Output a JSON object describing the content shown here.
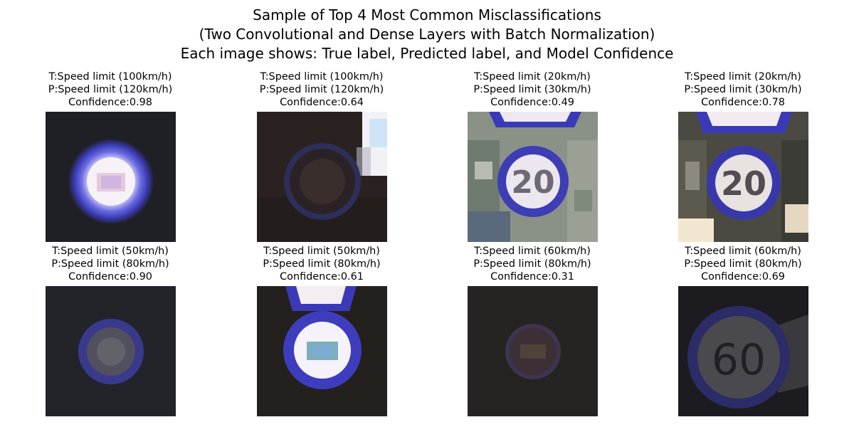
{
  "figure": {
    "title_lines": [
      "Sample of Top 4 Most Common Misclassifications",
      "(Two Convolutional and Dense Layers with Batch Normalization)",
      "Each image shows: True label, Predicted label, and Model Confidence"
    ]
  },
  "panels": [
    {
      "true_label": "T:Speed limit (100km/h)",
      "predicted_label": "P:Speed limit (120km/h)",
      "confidence": "Confidence:0.98",
      "image": "bright-blurred-speed-sign"
    },
    {
      "true_label": "T:Speed limit (100km/h)",
      "predicted_label": "P:Speed limit (120km/h)",
      "confidence": "Confidence:0.64",
      "image": "dark-speed-sign"
    },
    {
      "true_label": "T:Speed limit (20km/h)",
      "predicted_label": "P:Speed limit (30km/h)",
      "confidence": "Confidence:0.49",
      "image": "speed-sign-20"
    },
    {
      "true_label": "T:Speed limit (20km/h)",
      "predicted_label": "P:Speed limit (30km/h)",
      "confidence": "Confidence:0.78",
      "image": "speed-sign-20"
    },
    {
      "true_label": "T:Speed limit (50km/h)",
      "predicted_label": "P:Speed limit (80km/h)",
      "confidence": "Confidence:0.90",
      "image": "dark-speed-sign"
    },
    {
      "true_label": "T:Speed limit (50km/h)",
      "predicted_label": "P:Speed limit (80km/h)",
      "confidence": "Confidence:0.61",
      "image": "bright-blurred-speed-sign"
    },
    {
      "true_label": "T:Speed limit (60km/h)",
      "predicted_label": "P:Speed limit (80km/h)",
      "confidence": "Confidence:0.31",
      "image": "dark-speed-sign"
    },
    {
      "true_label": "T:Speed limit (60km/h)",
      "predicted_label": "P:Speed limit (80km/h)",
      "confidence": "Confidence:0.69",
      "image": "speed-sign-60"
    }
  ],
  "colors": {
    "sign_ring": "#3c3cb4",
    "sign_face": "#e8e4ef",
    "dark_background": "#1e1e24"
  }
}
